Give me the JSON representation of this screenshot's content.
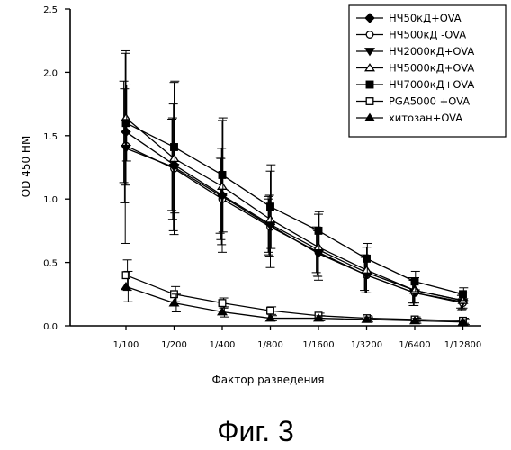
{
  "chart_data": {
    "type": "line",
    "categories": [
      "1/100",
      "1/200",
      "1/400",
      "1/800",
      "1/1600",
      "1/3200",
      "1/6400",
      "1/12800"
    ],
    "xlabel": "Фактор разведения",
    "ylabel": "OD 450 HM",
    "ylim": [
      0,
      2.5
    ],
    "yticks": [
      "0.0",
      "0.5",
      "1.0",
      "1.5",
      "2.0",
      "2.5"
    ],
    "legend_position": "top-right",
    "series": [
      {
        "name": "НЧ50кД+OVA",
        "marker": "diamond-filled",
        "values": [
          1.53,
          1.27,
          1.03,
          0.8,
          0.6,
          0.42,
          0.28,
          0.2
        ],
        "error": [
          0.4,
          0.36,
          0.3,
          0.22,
          0.18,
          0.14,
          0.1,
          0.06
        ]
      },
      {
        "name": "НЧ500кД -OVA",
        "marker": "circle-open",
        "values": [
          1.42,
          1.24,
          1.0,
          0.78,
          0.58,
          0.4,
          0.26,
          0.18
        ],
        "error": [
          0.45,
          0.4,
          0.32,
          0.22,
          0.18,
          0.14,
          0.1,
          0.06
        ]
      },
      {
        "name": "НЧ2000кД+OVA",
        "marker": "triangle-down-filled",
        "values": [
          1.4,
          1.25,
          1.02,
          0.79,
          0.57,
          0.4,
          0.26,
          0.19
        ],
        "error": [
          0.75,
          0.5,
          0.38,
          0.24,
          0.18,
          0.14,
          0.1,
          0.06
        ]
      },
      {
        "name": "НЧ5000кД+OVA",
        "marker": "triangle-up-open",
        "values": [
          1.64,
          1.32,
          1.1,
          0.84,
          0.62,
          0.44,
          0.28,
          0.2
        ],
        "error": [
          0.53,
          0.6,
          0.52,
          0.38,
          0.26,
          0.18,
          0.1,
          0.06
        ]
      },
      {
        "name": "НЧ7000кД+OVA",
        "marker": "square-filled",
        "values": [
          1.6,
          1.41,
          1.19,
          0.94,
          0.75,
          0.53,
          0.35,
          0.25
        ],
        "error": [
          0.3,
          0.52,
          0.45,
          0.33,
          0.15,
          0.12,
          0.08,
          0.05
        ]
      },
      {
        "name": "PGA5000 +OVA",
        "marker": "square-open",
        "values": [
          0.4,
          0.25,
          0.18,
          0.12,
          0.08,
          0.06,
          0.05,
          0.04
        ],
        "error": [
          0.12,
          0.06,
          0.04,
          0.03,
          0.02,
          0.02,
          0.02,
          0.02
        ]
      },
      {
        "name": "хитозан+OVA",
        "marker": "triangle-up-filled",
        "values": [
          0.31,
          0.18,
          0.11,
          0.06,
          0.06,
          0.05,
          0.04,
          0.03
        ],
        "error": [
          0.12,
          0.07,
          0.04,
          0.02,
          0.02,
          0.02,
          0.02,
          0.02
        ]
      }
    ]
  },
  "caption": "Фиг. 3"
}
